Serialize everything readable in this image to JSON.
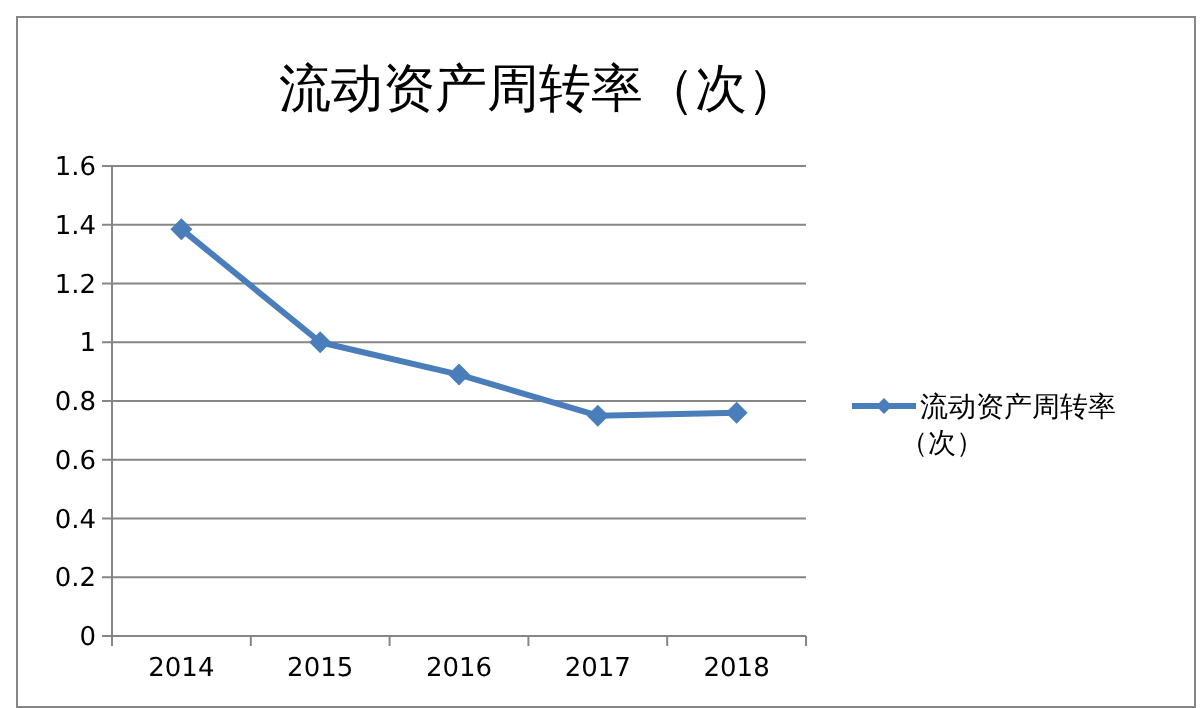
{
  "chart_data": {
    "type": "line",
    "title": "流动资产周转率（次）",
    "categories": [
      "2014",
      "2015",
      "2016",
      "2017",
      "2018"
    ],
    "series": [
      {
        "name": "流动资产周转率（次）",
        "color": "#4a7ebb",
        "values": [
          1.385,
          1.0,
          0.89,
          0.75,
          0.76
        ]
      }
    ],
    "ylim": [
      0,
      1.6
    ],
    "yticks": [
      0,
      0.2,
      0.4,
      0.6,
      0.8,
      1,
      1.2,
      1.4,
      1.6
    ],
    "grid": "y",
    "legend": "right",
    "marker": "diamond",
    "line_style": "solid"
  }
}
